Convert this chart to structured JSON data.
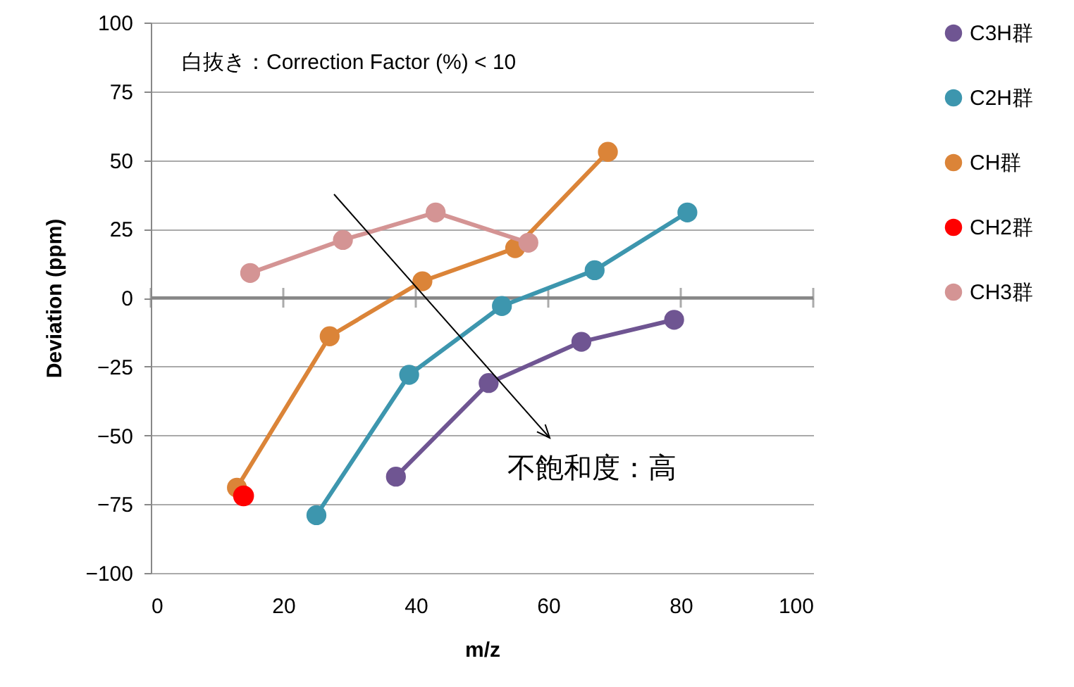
{
  "chart_data": {
    "type": "line",
    "xlabel": "m/z",
    "ylabel": "Deviation (ppm)",
    "xlim": [
      0,
      100
    ],
    "xticks": [
      0,
      20,
      40,
      60,
      80,
      100
    ],
    "ylim": [
      -100,
      100
    ],
    "yticks": [
      -100,
      -75,
      -50,
      -25,
      0,
      25,
      50,
      75,
      100
    ],
    "grid": "y",
    "legend": "right",
    "marker": "circle",
    "annotations": [
      "白抜き：Correction Factor (%) < 10",
      "不飽和度：高"
    ],
    "series": [
      {
        "name": "C3H群",
        "color": "#6f5592",
        "x": [
          37,
          51,
          65,
          79
        ],
        "values": [
          -65,
          -31,
          -16,
          -8
        ]
      },
      {
        "name": "C2H群",
        "color": "#3d96ae",
        "x": [
          25,
          39,
          53,
          67,
          81
        ],
        "values": [
          -79,
          -28,
          -3,
          10,
          31
        ]
      },
      {
        "name": "CH群",
        "color": "#db8438",
        "x": [
          13,
          27,
          41,
          55,
          69
        ],
        "values": [
          -69,
          -14,
          6,
          18,
          53
        ]
      },
      {
        "name": "CH2群",
        "color": "#ff0000",
        "type": "scatter",
        "x": [
          14
        ],
        "values": [
          -72
        ]
      },
      {
        "name": "CH3群",
        "color": "#d49494",
        "x": [
          15,
          29,
          43,
          57
        ],
        "values": [
          9,
          21,
          31,
          20
        ]
      }
    ]
  }
}
